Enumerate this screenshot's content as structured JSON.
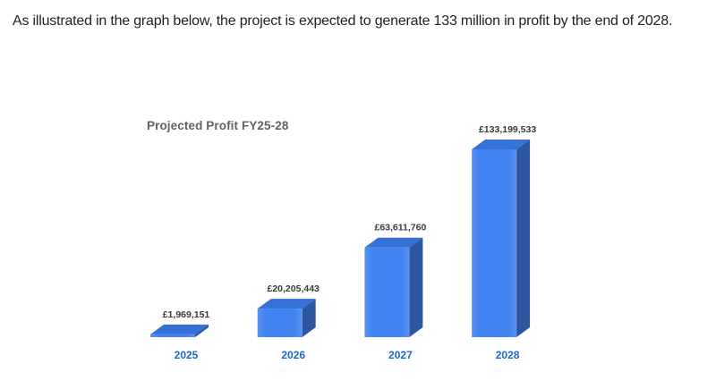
{
  "page": {
    "intro_text": "As illustrated in the graph below, the project is expected to generate 133 million in profit by the end of 2028."
  },
  "chart_data": {
    "type": "bar",
    "variant": "3d-column",
    "title": "Projected Profit FY25-28",
    "currency_symbol": "£",
    "categories": [
      "2025",
      "2026",
      "2027",
      "2028"
    ],
    "values": [
      1969151,
      20205443,
      63611760,
      133199533
    ],
    "value_labels": [
      "£1,969,151",
      "£20,205,443",
      "£63,611,760",
      "£133,199,533"
    ],
    "xlabel": "",
    "ylabel": "",
    "ylim": [
      0,
      133199533
    ],
    "grid": false,
    "legend": "none",
    "axes_visible": false,
    "colors": {
      "bar_front": "#3f82f0",
      "bar_front_highlight": "#5b94f4",
      "bar_top": "#3571d6",
      "bar_side": "#2e569e",
      "value_label": "#37393b",
      "category_label": "#1a67cb",
      "title": "#626262",
      "background": "#ffffff"
    }
  }
}
